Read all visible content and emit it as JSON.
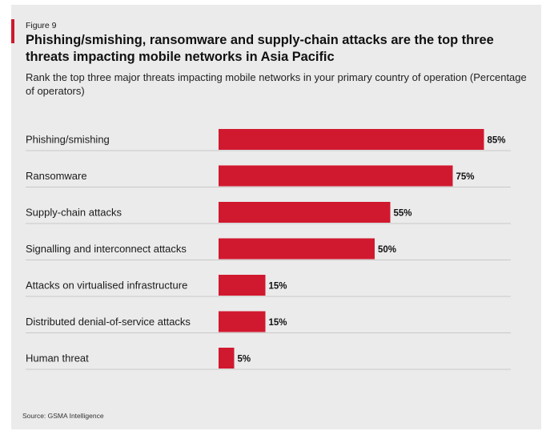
{
  "figure": {
    "label": "Figure 9",
    "title": "Phishing/smishing, ransomware and supply-chain attacks are the top three threats impacting mobile networks in Asia Pacific",
    "subtitle": "Rank the top three major threats impacting mobile networks in your primary country of operation (Percentage of operators)",
    "source": "Source: GSMA Intelligence",
    "accent_color": "#d0192f"
  },
  "chart_data": {
    "type": "bar",
    "orientation": "horizontal",
    "title": "Phishing/smishing, ransomware and supply-chain attacks are the top three threats impacting mobile networks in Asia Pacific",
    "subtitle": "Rank the top three major threats impacting mobile networks in your primary country of operation (Percentage of operators)",
    "categories": [
      "Phishing/smishing",
      "Ransomware",
      "Supply-chain attacks",
      "Signalling and interconnect attacks",
      "Attacks on virtualised infrastructure",
      "Distributed denial-of-service attacks",
      "Human threat"
    ],
    "values": [
      85,
      75,
      55,
      50,
      15,
      15,
      5
    ],
    "value_labels": [
      "85%",
      "75%",
      "55%",
      "50%",
      "15%",
      "15%",
      "5%"
    ],
    "unit": "%",
    "xlim": [
      0,
      100
    ],
    "bar_color": "#d0192f",
    "grid": false,
    "legend": "none"
  }
}
